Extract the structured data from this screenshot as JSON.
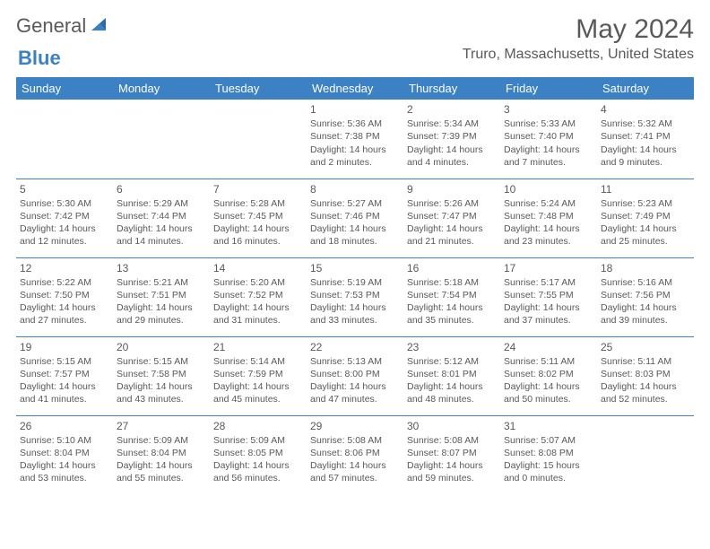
{
  "logo": {
    "general": "General",
    "blue": "Blue"
  },
  "title": "May 2024",
  "location": "Truro, Massachusetts, United States",
  "colors": {
    "header_bg": "#3b81c3",
    "header_text": "#ffffff",
    "border": "#3b81c3",
    "text": "#595959",
    "background": "#ffffff"
  },
  "day_headers": [
    "Sunday",
    "Monday",
    "Tuesday",
    "Wednesday",
    "Thursday",
    "Friday",
    "Saturday"
  ],
  "weeks": [
    [
      null,
      null,
      null,
      {
        "n": "1",
        "sr": "Sunrise: 5:36 AM",
        "ss": "Sunset: 7:38 PM",
        "dl": "Daylight: 14 hours and 2 minutes."
      },
      {
        "n": "2",
        "sr": "Sunrise: 5:34 AM",
        "ss": "Sunset: 7:39 PM",
        "dl": "Daylight: 14 hours and 4 minutes."
      },
      {
        "n": "3",
        "sr": "Sunrise: 5:33 AM",
        "ss": "Sunset: 7:40 PM",
        "dl": "Daylight: 14 hours and 7 minutes."
      },
      {
        "n": "4",
        "sr": "Sunrise: 5:32 AM",
        "ss": "Sunset: 7:41 PM",
        "dl": "Daylight: 14 hours and 9 minutes."
      }
    ],
    [
      {
        "n": "5",
        "sr": "Sunrise: 5:30 AM",
        "ss": "Sunset: 7:42 PM",
        "dl": "Daylight: 14 hours and 12 minutes."
      },
      {
        "n": "6",
        "sr": "Sunrise: 5:29 AM",
        "ss": "Sunset: 7:44 PM",
        "dl": "Daylight: 14 hours and 14 minutes."
      },
      {
        "n": "7",
        "sr": "Sunrise: 5:28 AM",
        "ss": "Sunset: 7:45 PM",
        "dl": "Daylight: 14 hours and 16 minutes."
      },
      {
        "n": "8",
        "sr": "Sunrise: 5:27 AM",
        "ss": "Sunset: 7:46 PM",
        "dl": "Daylight: 14 hours and 18 minutes."
      },
      {
        "n": "9",
        "sr": "Sunrise: 5:26 AM",
        "ss": "Sunset: 7:47 PM",
        "dl": "Daylight: 14 hours and 21 minutes."
      },
      {
        "n": "10",
        "sr": "Sunrise: 5:24 AM",
        "ss": "Sunset: 7:48 PM",
        "dl": "Daylight: 14 hours and 23 minutes."
      },
      {
        "n": "11",
        "sr": "Sunrise: 5:23 AM",
        "ss": "Sunset: 7:49 PM",
        "dl": "Daylight: 14 hours and 25 minutes."
      }
    ],
    [
      {
        "n": "12",
        "sr": "Sunrise: 5:22 AM",
        "ss": "Sunset: 7:50 PM",
        "dl": "Daylight: 14 hours and 27 minutes."
      },
      {
        "n": "13",
        "sr": "Sunrise: 5:21 AM",
        "ss": "Sunset: 7:51 PM",
        "dl": "Daylight: 14 hours and 29 minutes."
      },
      {
        "n": "14",
        "sr": "Sunrise: 5:20 AM",
        "ss": "Sunset: 7:52 PM",
        "dl": "Daylight: 14 hours and 31 minutes."
      },
      {
        "n": "15",
        "sr": "Sunrise: 5:19 AM",
        "ss": "Sunset: 7:53 PM",
        "dl": "Daylight: 14 hours and 33 minutes."
      },
      {
        "n": "16",
        "sr": "Sunrise: 5:18 AM",
        "ss": "Sunset: 7:54 PM",
        "dl": "Daylight: 14 hours and 35 minutes."
      },
      {
        "n": "17",
        "sr": "Sunrise: 5:17 AM",
        "ss": "Sunset: 7:55 PM",
        "dl": "Daylight: 14 hours and 37 minutes."
      },
      {
        "n": "18",
        "sr": "Sunrise: 5:16 AM",
        "ss": "Sunset: 7:56 PM",
        "dl": "Daylight: 14 hours and 39 minutes."
      }
    ],
    [
      {
        "n": "19",
        "sr": "Sunrise: 5:15 AM",
        "ss": "Sunset: 7:57 PM",
        "dl": "Daylight: 14 hours and 41 minutes."
      },
      {
        "n": "20",
        "sr": "Sunrise: 5:15 AM",
        "ss": "Sunset: 7:58 PM",
        "dl": "Daylight: 14 hours and 43 minutes."
      },
      {
        "n": "21",
        "sr": "Sunrise: 5:14 AM",
        "ss": "Sunset: 7:59 PM",
        "dl": "Daylight: 14 hours and 45 minutes."
      },
      {
        "n": "22",
        "sr": "Sunrise: 5:13 AM",
        "ss": "Sunset: 8:00 PM",
        "dl": "Daylight: 14 hours and 47 minutes."
      },
      {
        "n": "23",
        "sr": "Sunrise: 5:12 AM",
        "ss": "Sunset: 8:01 PM",
        "dl": "Daylight: 14 hours and 48 minutes."
      },
      {
        "n": "24",
        "sr": "Sunrise: 5:11 AM",
        "ss": "Sunset: 8:02 PM",
        "dl": "Daylight: 14 hours and 50 minutes."
      },
      {
        "n": "25",
        "sr": "Sunrise: 5:11 AM",
        "ss": "Sunset: 8:03 PM",
        "dl": "Daylight: 14 hours and 52 minutes."
      }
    ],
    [
      {
        "n": "26",
        "sr": "Sunrise: 5:10 AM",
        "ss": "Sunset: 8:04 PM",
        "dl": "Daylight: 14 hours and 53 minutes."
      },
      {
        "n": "27",
        "sr": "Sunrise: 5:09 AM",
        "ss": "Sunset: 8:04 PM",
        "dl": "Daylight: 14 hours and 55 minutes."
      },
      {
        "n": "28",
        "sr": "Sunrise: 5:09 AM",
        "ss": "Sunset: 8:05 PM",
        "dl": "Daylight: 14 hours and 56 minutes."
      },
      {
        "n": "29",
        "sr": "Sunrise: 5:08 AM",
        "ss": "Sunset: 8:06 PM",
        "dl": "Daylight: 14 hours and 57 minutes."
      },
      {
        "n": "30",
        "sr": "Sunrise: 5:08 AM",
        "ss": "Sunset: 8:07 PM",
        "dl": "Daylight: 14 hours and 59 minutes."
      },
      {
        "n": "31",
        "sr": "Sunrise: 5:07 AM",
        "ss": "Sunset: 8:08 PM",
        "dl": "Daylight: 15 hours and 0 minutes."
      },
      null
    ]
  ]
}
